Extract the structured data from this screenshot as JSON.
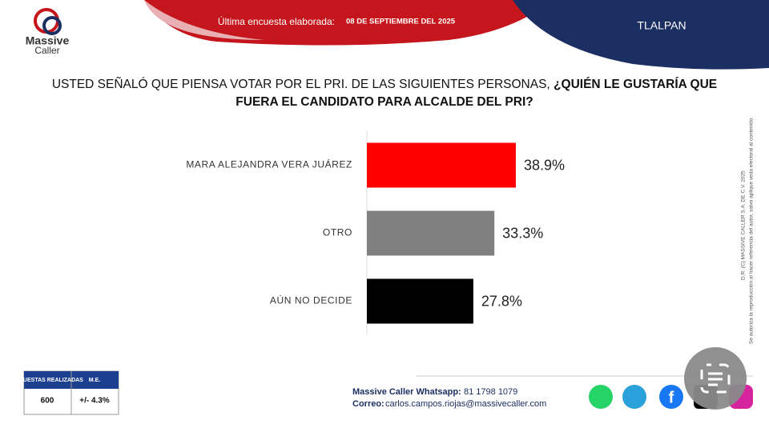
{
  "header": {
    "brand": "Massive",
    "brand_second": "Caller",
    "last_survey_label": "Última encuesta elaborada:",
    "last_survey_date": "08 DE SEPTIEMBRE DEL 2025",
    "region": "TLALPAN"
  },
  "chart_data": {
    "type": "bar",
    "title_lead": "USTED SEÑALÓ QUE PIENSA VOTAR POR EL PRI. DE LAS SIGUIENTES PERSONAS, ",
    "title_question": "¿QUIÉN LE GUSTARÍA QUE FUERA EL CANDIDATO PARA ALCALDE DEL PRI?",
    "categories": [
      "MARA ALEJANDRA VERA JUÁREZ",
      "OTRO",
      "AÚN NO DECIDE"
    ],
    "values": [
      38.9,
      33.3,
      27.8
    ],
    "value_labels": [
      "38.9%",
      "33.3%",
      "27.8%"
    ],
    "colors": [
      "#ff0000",
      "#808080",
      "#000000"
    ]
  },
  "survey_table": {
    "headers": [
      "ENCUESTAS REALIZADAS",
      "M.E."
    ],
    "row": [
      "600",
      "+/- 4.3%"
    ]
  },
  "footer": {
    "whatsapp_label": "Massive Caller Whatsapp:",
    "whatsapp": "81 1798 1079",
    "email_label": "Correo:",
    "email": "carlos.campos.riojas@massivecaller.com"
  },
  "notice": {
    "copyright": "D.R. (C) MASSIVE CALLER S.A. DE C.V. 2025",
    "text": "Se autoriza la reproducción al hacer referencia del autor, salvo aplique veda electoral al contenido."
  }
}
